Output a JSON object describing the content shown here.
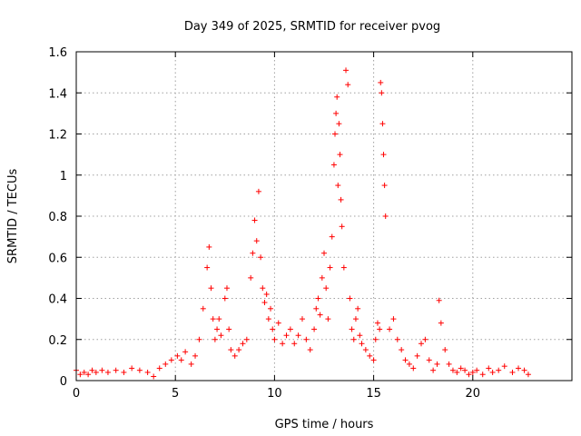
{
  "chart_data": {
    "type": "scatter",
    "title": "Day 349 of 2025, SRMTID for receiver pvog",
    "xlabel": "GPS time / hours",
    "ylabel": "SRMTID / TECUs",
    "xlim": [
      0,
      25
    ],
    "ylim": [
      0,
      1.6
    ],
    "xticks": [
      0,
      5,
      10,
      15,
      20
    ],
    "xtick_labels": [
      "0",
      "5",
      "10",
      "15",
      "20"
    ],
    "yticks": [
      0,
      0.2,
      0.4,
      0.6,
      0.8,
      1,
      1.2,
      1.4,
      1.6
    ],
    "ytick_labels": [
      "0",
      "0.2",
      "0.4",
      "0.6",
      "0.8",
      "1",
      "1.2",
      "1.4",
      "1.6"
    ],
    "grid": true,
    "marker": "+",
    "color": "#ff0000",
    "series": [
      {
        "name": "SRMTID",
        "x": [
          0.0,
          0.2,
          0.4,
          0.6,
          0.8,
          1.0,
          1.3,
          1.6,
          2.0,
          2.4,
          2.8,
          3.2,
          3.6,
          3.9,
          4.2,
          4.5,
          4.8,
          5.1,
          5.3,
          5.5,
          5.8,
          6.0,
          6.2,
          6.4,
          6.6,
          6.7,
          6.8,
          6.9,
          7.0,
          7.1,
          7.2,
          7.3,
          7.5,
          7.6,
          7.7,
          7.8,
          8.0,
          8.2,
          8.4,
          8.6,
          8.8,
          8.9,
          9.0,
          9.1,
          9.2,
          9.3,
          9.4,
          9.5,
          9.6,
          9.7,
          9.8,
          9.9,
          10.0,
          10.2,
          10.4,
          10.6,
          10.8,
          11.0,
          11.2,
          11.4,
          11.6,
          11.8,
          12.0,
          12.1,
          12.2,
          12.3,
          12.4,
          12.5,
          12.6,
          12.7,
          12.8,
          12.9,
          13.0,
          13.05,
          13.1,
          13.15,
          13.2,
          13.25,
          13.3,
          13.35,
          13.4,
          13.5,
          13.6,
          13.7,
          13.8,
          13.9,
          14.0,
          14.1,
          14.2,
          14.3,
          14.4,
          14.6,
          14.8,
          15.0,
          15.1,
          15.2,
          15.3,
          15.35,
          15.4,
          15.45,
          15.5,
          15.55,
          15.6,
          15.8,
          16.0,
          16.2,
          16.4,
          16.6,
          16.8,
          17.0,
          17.2,
          17.4,
          17.6,
          17.8,
          18.0,
          18.2,
          18.3,
          18.4,
          18.6,
          18.8,
          19.0,
          19.2,
          19.4,
          19.6,
          19.8,
          20.0,
          20.2,
          20.5,
          20.8,
          21.0,
          21.3,
          21.6,
          22.0,
          22.3,
          22.6,
          22.8
        ],
        "y": [
          0.05,
          0.03,
          0.04,
          0.03,
          0.05,
          0.04,
          0.05,
          0.04,
          0.05,
          0.04,
          0.06,
          0.05,
          0.04,
          0.02,
          0.06,
          0.08,
          0.1,
          0.12,
          0.1,
          0.14,
          0.08,
          0.12,
          0.2,
          0.35,
          0.55,
          0.65,
          0.45,
          0.3,
          0.2,
          0.25,
          0.3,
          0.22,
          0.4,
          0.45,
          0.25,
          0.15,
          0.12,
          0.15,
          0.18,
          0.2,
          0.5,
          0.62,
          0.78,
          0.68,
          0.92,
          0.6,
          0.45,
          0.38,
          0.42,
          0.3,
          0.35,
          0.25,
          0.2,
          0.28,
          0.18,
          0.22,
          0.25,
          0.18,
          0.22,
          0.3,
          0.2,
          0.15,
          0.25,
          0.35,
          0.4,
          0.32,
          0.5,
          0.62,
          0.45,
          0.3,
          0.55,
          0.7,
          1.05,
          1.2,
          1.3,
          1.38,
          0.95,
          1.25,
          1.1,
          0.88,
          0.75,
          0.55,
          1.51,
          1.44,
          0.4,
          0.25,
          0.2,
          0.3,
          0.35,
          0.22,
          0.18,
          0.15,
          0.12,
          0.1,
          0.2,
          0.28,
          0.25,
          1.45,
          1.4,
          1.25,
          1.1,
          0.95,
          0.8,
          0.25,
          0.3,
          0.2,
          0.15,
          0.1,
          0.08,
          0.06,
          0.12,
          0.18,
          0.2,
          0.1,
          0.05,
          0.08,
          0.39,
          0.28,
          0.15,
          0.08,
          0.05,
          0.04,
          0.06,
          0.05,
          0.03,
          0.04,
          0.05,
          0.03,
          0.06,
          0.04,
          0.05,
          0.07,
          0.04,
          0.06,
          0.05,
          0.03
        ]
      }
    ]
  }
}
